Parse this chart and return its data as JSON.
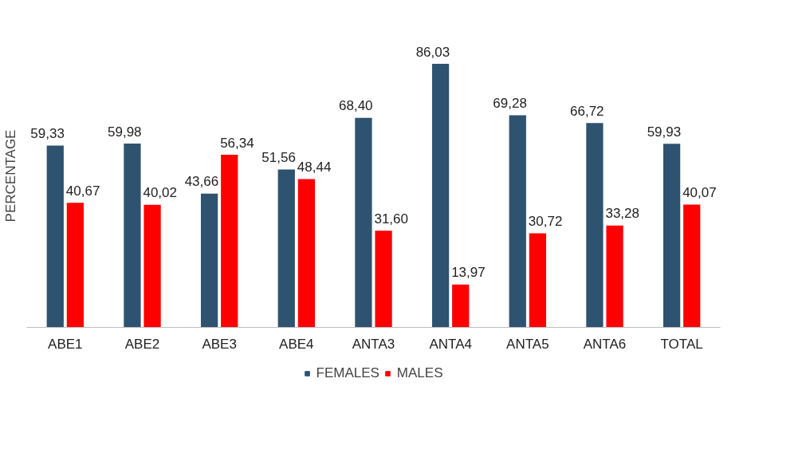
{
  "chart_data": {
    "type": "bar",
    "ylabel": "PERCENTAGE",
    "categories": [
      "ABE1",
      "ABE2",
      "ABE3",
      "ABE4",
      "ANTA3",
      "ANTA4",
      "ANTA5",
      "ANTA6",
      "TOTAL"
    ],
    "series": [
      {
        "name": "FEMALES",
        "color": "#2e5370",
        "values": [
          59.33,
          59.98,
          43.66,
          51.56,
          68.4,
          86.03,
          69.28,
          66.72,
          59.93
        ],
        "value_labels": [
          "59,33",
          "59,98",
          "43,66",
          "51,56",
          "68,40",
          "86,03",
          "69,28",
          "66,72",
          "59,93"
        ]
      },
      {
        "name": "MALES",
        "color": "#ff0000",
        "values": [
          40.67,
          40.02,
          56.34,
          48.44,
          31.6,
          13.97,
          30.72,
          33.28,
          40.07
        ],
        "value_labels": [
          "40,67",
          "40,02",
          "56,34",
          "48,44",
          "31,60",
          "13,97",
          "30,72",
          "33,28",
          "40,07"
        ]
      }
    ],
    "legend": "bottom"
  }
}
